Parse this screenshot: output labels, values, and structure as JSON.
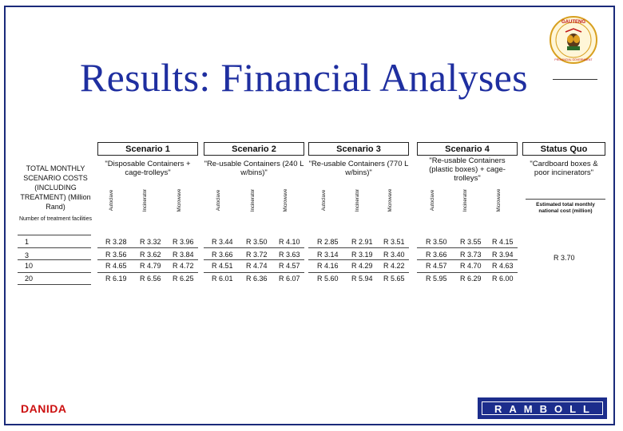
{
  "title": "Results: Financial Analyses",
  "footer": {
    "left": "DANIDA",
    "logo": "RAMBOLL"
  },
  "seal": {
    "top_text": "GAUTENG",
    "bottom_text": "PROVINCIAL GOVERNMENT"
  },
  "table": {
    "row_header": "TOTAL MONTHLY SCENARIO COSTS (INCLUDING TREATMENT) (Million Rand)",
    "row_subheader": "Number of treatment facilities",
    "rows": [
      "1",
      "3",
      "10",
      "20"
    ],
    "methods": [
      "Autoclave",
      "Incinerator",
      "Microwave"
    ],
    "scenarios": [
      {
        "name": "Scenario 1",
        "desc": "\"Disposable Containers + cage-trolleys\"",
        "values": [
          [
            "R 3.28",
            "R 3.32",
            "R 3.96"
          ],
          [
            "R 3.56",
            "R 3.62",
            "R 3.84"
          ],
          [
            "R 4.65",
            "R 4.79",
            "R 4.72"
          ],
          [
            "R 6.19",
            "R 6.56",
            "R 6.25"
          ]
        ]
      },
      {
        "name": "Scenario 2",
        "desc": "\"Re-usable Containers (240 L w/bins)\"",
        "values": [
          [
            "R 3.44",
            "R 3.50",
            "R 4.10"
          ],
          [
            "R 3.66",
            "R 3.72",
            "R 3.63"
          ],
          [
            "R 4.51",
            "R 4.74",
            "R 4.57"
          ],
          [
            "R 6.01",
            "R 6.36",
            "R 6.07"
          ]
        ]
      },
      {
        "name": "Scenario 3",
        "desc": "\"Re-usable Containers (770 L w/bins)\"",
        "values": [
          [
            "R 2.85",
            "R 2.91",
            "R 3.51"
          ],
          [
            "R 3.14",
            "R 3.19",
            "R 3.40"
          ],
          [
            "R 4.16",
            "R 4.29",
            "R 4.22"
          ],
          [
            "R 5.60",
            "R 5.94",
            "R 5.65"
          ]
        ]
      },
      {
        "name": "Scenario 4",
        "desc": "\"Re-usable Containers (plastic boxes) + cage-trolleys\"",
        "values": [
          [
            "R 3.50",
            "R 3.55",
            "R 4.15"
          ],
          [
            "R 3.66",
            "R 3.73",
            "R 3.94"
          ],
          [
            "R 4.57",
            "R 4.70",
            "R 4.63"
          ],
          [
            "R 5.95",
            "R 6.29",
            "R 6.00"
          ]
        ]
      }
    ],
    "status_quo": {
      "name": "Status Quo",
      "desc": "\"Cardboard boxes & poor incinerators\"",
      "sublabel": "Estimated total monthly national cost (million)",
      "value": "R 3.70"
    }
  }
}
